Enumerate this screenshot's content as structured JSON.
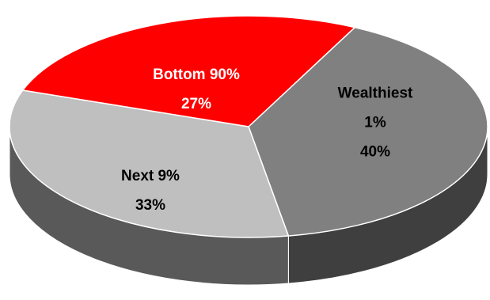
{
  "chart_data": {
    "type": "pie",
    "style": "3d",
    "title": "",
    "slices": [
      {
        "category": "Wealthiest 1%",
        "label_lines": [
          "Wealthiest",
          "1%",
          "40%"
        ],
        "value": 40,
        "color": "#808080",
        "side_color": "#3f3f3f",
        "label_color": "#000000"
      },
      {
        "category": "Next 9%",
        "label_lines": [
          "Next 9%",
          "33%"
        ],
        "value": 33,
        "color": "#bfbfbf",
        "side_color": "#595959",
        "label_color": "#000000"
      },
      {
        "category": "Bottom 90%",
        "label_lines": [
          "Bottom 90%",
          "27%"
        ],
        "value": 27,
        "color": "#ff0000",
        "side_color": "#990000",
        "label_color": "#ffffff"
      }
    ],
    "start_angle_deg": -63.6,
    "direction": "clockwise",
    "legend": "none",
    "grid": false
  }
}
